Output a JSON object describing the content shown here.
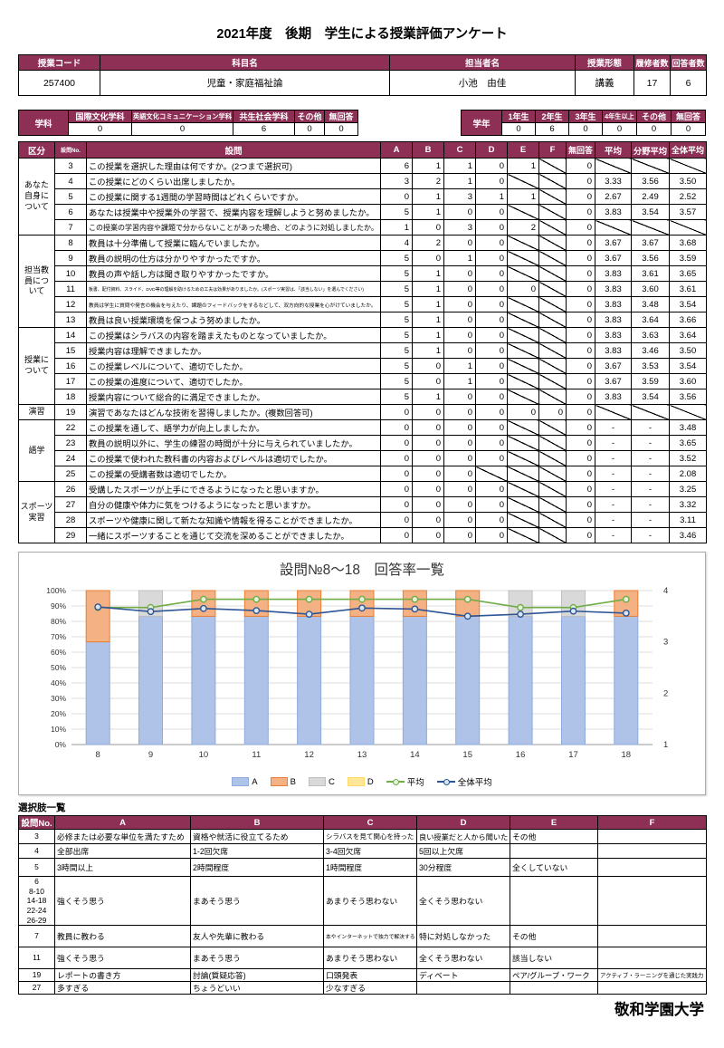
{
  "page": {
    "title": "2021年度　後期　学生による授業評価アンケート",
    "footer": "敬和学園大学",
    "accent_color": "#8E2F56"
  },
  "course_table": {
    "headers": [
      "授業コード",
      "科目名",
      "担当者名",
      "授業形態",
      "履修者数",
      "回答者数"
    ],
    "values": [
      "257400",
      "児童・家庭福祉論",
      "小池　由佳",
      "講義",
      "17",
      "6"
    ]
  },
  "dept_table": {
    "label": "学科",
    "headers": [
      "国際文化学科",
      "英語文化コミュニケーション学科",
      "共生社会学科",
      "その他",
      "無回答"
    ],
    "values": [
      "0",
      "0",
      "6",
      "0",
      "0"
    ]
  },
  "year_table": {
    "label": "学年",
    "headers": [
      "1年生",
      "2年生",
      "3年生",
      "4年生以上",
      "その他",
      "無回答"
    ],
    "values": [
      "0",
      "6",
      "0",
      "0",
      "0",
      "0"
    ]
  },
  "question_table": {
    "headers": [
      "区分",
      "設問No.",
      "設問",
      "A",
      "B",
      "C",
      "D",
      "E",
      "F",
      "無回答",
      "平均",
      "分野平均",
      "全体平均"
    ],
    "sections": [
      {
        "label": "あなた\n自身に\nついて",
        "rows": [
          {
            "no": "3",
            "q": "この授業を選択した理由は何ですか。(2つまで選択可)",
            "cells": [
              "6",
              "1",
              "1",
              "0",
              "1",
              "/",
              "0",
              "/",
              "/",
              "/"
            ]
          },
          {
            "no": "4",
            "q": "この授業にどのくらい出席しましたか。",
            "cells": [
              "3",
              "2",
              "1",
              "0",
              "/",
              "/",
              "0",
              "3.33",
              "3.56",
              "3.50"
            ]
          },
          {
            "no": "5",
            "q": "この授業に関する1週間の学習時間はどれくらいですか。",
            "cells": [
              "0",
              "1",
              "3",
              "1",
              "1",
              "/",
              "0",
              "2.67",
              "2.49",
              "2.52"
            ]
          },
          {
            "no": "6",
            "q": "あなたは授業中や授業外の学習で、授業内容を理解しようと努めましたか。",
            "cells": [
              "5",
              "1",
              "0",
              "0",
              "/",
              "/",
              "0",
              "3.83",
              "3.54",
              "3.57"
            ]
          },
          {
            "no": "7",
            "q": "この授業の学習内容や課題で分からないことがあった場合、どのように対処しましたか。",
            "cells": [
              "1",
              "0",
              "3",
              "0",
              "2",
              "/",
              "0",
              "/",
              "/",
              "/"
            ]
          }
        ]
      },
      {
        "label": "担当教\n員につ\nいて",
        "rows": [
          {
            "no": "8",
            "q": "教員は十分準備して授業に臨んでいましたか。",
            "cells": [
              "4",
              "2",
              "0",
              "0",
              "/",
              "/",
              "0",
              "3.67",
              "3.67",
              "3.68"
            ]
          },
          {
            "no": "9",
            "q": "教員の説明の仕方は分かりやすかったですか。",
            "cells": [
              "5",
              "0",
              "1",
              "0",
              "/",
              "/",
              "0",
              "3.67",
              "3.56",
              "3.59"
            ]
          },
          {
            "no": "10",
            "q": "教員の声や話し方は聞き取りやすかったですか。",
            "cells": [
              "5",
              "1",
              "0",
              "0",
              "/",
              "/",
              "0",
              "3.83",
              "3.61",
              "3.65"
            ]
          },
          {
            "no": "11",
            "q": "板書、配付資料、スライド、DVD等の理解を助けるための工夫は効果がありましたか。(スポーツ実習は、「該当しない」を選んでください)",
            "cells": [
              "5",
              "1",
              "0",
              "0",
              "0",
              "/",
              "0",
              "3.83",
              "3.60",
              "3.61"
            ]
          },
          {
            "no": "12",
            "q": "教員は学生に質問や発言の機会を与えたり、課題のフィードバックをするなどして、双方向的な授業を心がけていましたか。",
            "cells": [
              "5",
              "1",
              "0",
              "0",
              "/",
              "/",
              "0",
              "3.83",
              "3.48",
              "3.54"
            ]
          },
          {
            "no": "13",
            "q": "教員は良い授業環境を保つよう努めましたか。",
            "cells": [
              "5",
              "1",
              "0",
              "0",
              "/",
              "/",
              "0",
              "3.83",
              "3.64",
              "3.66"
            ]
          }
        ]
      },
      {
        "label": "授業に\nついて",
        "rows": [
          {
            "no": "14",
            "q": "この授業はシラバスの内容を踏まえたものとなっていましたか。",
            "cells": [
              "5",
              "1",
              "0",
              "0",
              "/",
              "/",
              "0",
              "3.83",
              "3.63",
              "3.64"
            ]
          },
          {
            "no": "15",
            "q": "授業内容は理解できましたか。",
            "cells": [
              "5",
              "1",
              "0",
              "0",
              "/",
              "/",
              "0",
              "3.83",
              "3.46",
              "3.50"
            ]
          },
          {
            "no": "16",
            "q": "この授業レベルについて、適切でしたか。",
            "cells": [
              "5",
              "0",
              "1",
              "0",
              "/",
              "/",
              "0",
              "3.67",
              "3.53",
              "3.54"
            ]
          },
          {
            "no": "17",
            "q": "この授業の進度について、適切でしたか。",
            "cells": [
              "5",
              "0",
              "1",
              "0",
              "/",
              "/",
              "0",
              "3.67",
              "3.59",
              "3.60"
            ]
          },
          {
            "no": "18",
            "q": "授業内容について総合的に満足できましたか。",
            "cells": [
              "5",
              "1",
              "0",
              "0",
              "/",
              "/",
              "0",
              "3.83",
              "3.54",
              "3.56"
            ]
          }
        ]
      },
      {
        "label": "演習",
        "rows": [
          {
            "no": "19",
            "q": "演習であなたはどんな技術を習得しましたか。(複数回答可)",
            "cells": [
              "0",
              "0",
              "0",
              "0",
              "0",
              "0",
              "0",
              "/",
              "/",
              "/"
            ]
          }
        ]
      },
      {
        "label": "語学",
        "rows": [
          {
            "no": "22",
            "q": "この授業を通して、語学力が向上しましたか。",
            "cells": [
              "0",
              "0",
              "0",
              "0",
              "/",
              "/",
              "0",
              "-",
              "-",
              "3.48"
            ]
          },
          {
            "no": "23",
            "q": "教員の説明以外に、学生の練習の時間が十分に与えられていましたか。",
            "cells": [
              "0",
              "0",
              "0",
              "0",
              "/",
              "/",
              "0",
              "-",
              "-",
              "3.65"
            ]
          },
          {
            "no": "24",
            "q": "この授業で使われた教科書の内容およびレベルは適切でしたか。",
            "cells": [
              "0",
              "0",
              "0",
              "0",
              "/",
              "/",
              "0",
              "-",
              "-",
              "3.52"
            ]
          },
          {
            "no": "25",
            "q": "この授業の受講者数は適切でしたか。",
            "cells": [
              "0",
              "0",
              "0",
              "/",
              "/",
              "/",
              "0",
              "-",
              "-",
              "2.08"
            ]
          }
        ]
      },
      {
        "label": "スポーツ\n実習",
        "rows": [
          {
            "no": "26",
            "q": "受講したスポーツが上手にできるようになったと思いますか。",
            "cells": [
              "0",
              "0",
              "0",
              "0",
              "/",
              "/",
              "0",
              "-",
              "-",
              "3.25"
            ]
          },
          {
            "no": "27",
            "q": "自分の健康や体力に気をつけるようになったと思いますか。",
            "cells": [
              "0",
              "0",
              "0",
              "0",
              "/",
              "/",
              "0",
              "-",
              "-",
              "3.32"
            ]
          },
          {
            "no": "28",
            "q": "スポーツや健康に関して新たな知識や情報を得ることができましたか。",
            "cells": [
              "0",
              "0",
              "0",
              "0",
              "/",
              "/",
              "0",
              "-",
              "-",
              "3.11"
            ]
          },
          {
            "no": "29",
            "q": "一緒にスポーツすることを通じて交流を深めることができましたか。",
            "cells": [
              "0",
              "0",
              "0",
              "0",
              "/",
              "/",
              "0",
              "-",
              "-",
              "3.46"
            ]
          }
        ]
      }
    ]
  },
  "chart_data": {
    "type": "bar",
    "subtype": "stacked-percent-with-lines",
    "title": "設問№8～18　回答率一覧",
    "categories": [
      "8",
      "9",
      "10",
      "11",
      "12",
      "13",
      "14",
      "15",
      "16",
      "17",
      "18"
    ],
    "series": [
      {
        "name": "A",
        "type": "bar",
        "color": "#AEC3E7",
        "border": "#8FAADC",
        "values": [
          66.7,
          83.3,
          83.3,
          83.3,
          83.3,
          83.3,
          83.3,
          83.3,
          83.3,
          83.3,
          83.3
        ]
      },
      {
        "name": "B",
        "type": "bar",
        "color": "#F4B183",
        "border": "#ED7D31",
        "values": [
          33.3,
          0,
          16.7,
          16.7,
          16.7,
          16.7,
          16.7,
          16.7,
          0,
          0,
          16.7
        ]
      },
      {
        "name": "C",
        "type": "bar",
        "color": "#D9D9D9",
        "border": "#BFBFBF",
        "values": [
          0,
          16.7,
          0,
          0,
          0,
          0,
          0,
          0,
          16.7,
          16.7,
          0
        ]
      },
      {
        "name": "D",
        "type": "bar",
        "color": "#FFE699",
        "border": "#FFD966",
        "values": [
          0,
          0,
          0,
          0,
          0,
          0,
          0,
          0,
          0,
          0,
          0
        ]
      },
      {
        "name": "平均",
        "type": "line",
        "color": "#70AD47",
        "marker_fill": "#E7F2DE",
        "axis": "right",
        "values": [
          3.67,
          3.67,
          3.83,
          3.83,
          3.83,
          3.83,
          3.83,
          3.83,
          3.67,
          3.67,
          3.83
        ]
      },
      {
        "name": "全体平均",
        "type": "line",
        "color": "#2E5596",
        "marker_fill": "#DCE6F1",
        "axis": "right",
        "values": [
          3.68,
          3.59,
          3.65,
          3.61,
          3.54,
          3.66,
          3.64,
          3.5,
          3.54,
          3.6,
          3.56
        ]
      }
    ],
    "left_axis": {
      "min": 0,
      "max": 100,
      "ticks": [
        "0%",
        "10%",
        "20%",
        "30%",
        "40%",
        "50%",
        "60%",
        "70%",
        "80%",
        "90%",
        "100%"
      ]
    },
    "right_axis": {
      "min": 1,
      "max": 4,
      "ticks": [
        "1",
        "2",
        "3",
        "4"
      ]
    },
    "grid": true,
    "legend_position": "bottom"
  },
  "options_table": {
    "title": "選択肢一覧",
    "headers": [
      "設問No.",
      "A",
      "B",
      "C",
      "D",
      "E",
      "F"
    ],
    "rows": [
      {
        "no": "3",
        "cells": [
          "必修または必要な単位を満たすため",
          "資格や就活に役立てるため",
          "シラバスを見て関心を持った",
          "良い授業だと人から聞いた",
          "その他",
          ""
        ]
      },
      {
        "no": "4",
        "cells": [
          "全部出席",
          "1-2回欠席",
          "3-4回欠席",
          "5回以上欠席",
          "",
          ""
        ]
      },
      {
        "no": "5",
        "cells": [
          "3時間以上",
          "2時間程度",
          "1時間程度",
          "30分程度",
          "全くしていない",
          ""
        ]
      },
      {
        "no": "6\n8-10\n14-18\n22-24\n26-29",
        "cells": [
          "強くそう思う",
          "まあそう思う",
          "あまりそう思わない",
          "全くそう思わない",
          "",
          ""
        ]
      },
      {
        "no": "7",
        "cells": [
          "教員に教わる",
          "友人や先輩に教わる",
          "本やインターネットで独力で解決する",
          "特に対処しなかった",
          "その他",
          ""
        ]
      },
      {
        "no": "11",
        "cells": [
          "強くそう思う",
          "まあそう思う",
          "あまりそう思わない",
          "全くそう思わない",
          "該当しない",
          ""
        ]
      },
      {
        "no": "19",
        "cells": [
          "レポートの書き方",
          "討論(質疑応答)",
          "口頭発表",
          "ディベート",
          "ペア/グループ・ワーク",
          "アクティブ・ラーニングを通じた実践力"
        ]
      },
      {
        "no": "27",
        "cells": [
          "多すぎる",
          "ちょうどいい",
          "少なすぎる",
          "",
          "",
          ""
        ]
      }
    ]
  }
}
